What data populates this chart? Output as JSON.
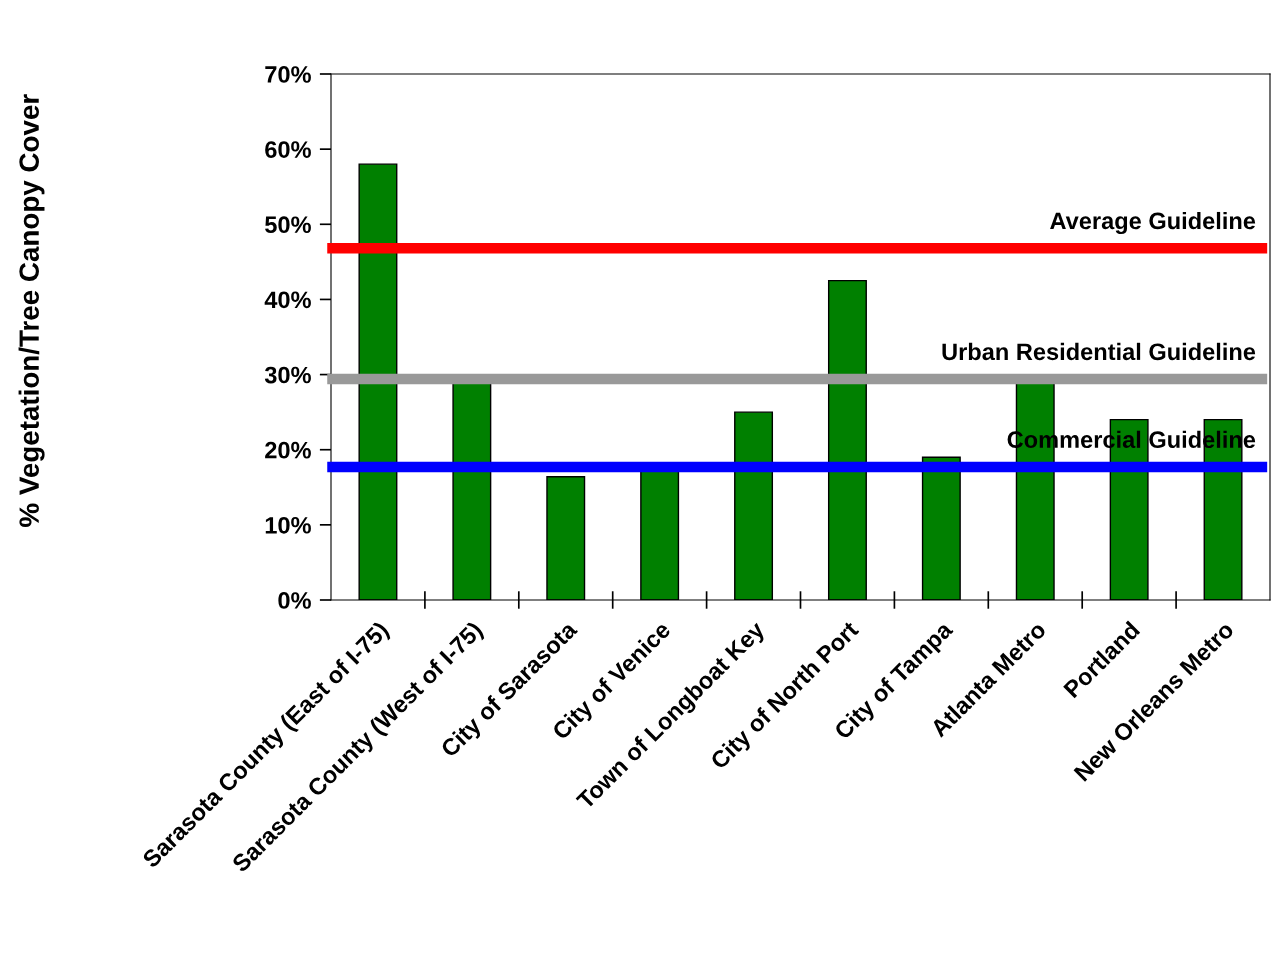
{
  "chart_data": {
    "type": "bar",
    "ylabel": "% Vegetation/Tree Canopy Cover",
    "categories": [
      "Sarasota County (East of I-75)",
      "Sarasota County (West of I-75)",
      "City of Sarasota",
      "City of Venice",
      "Town of Longboat Key",
      "City of North Port",
      "City of Tampa",
      "Atlanta Metro",
      "Portland",
      "New Orleans Metro"
    ],
    "values": [
      58,
      29,
      16.4,
      17.5,
      25,
      42.5,
      19,
      29,
      24,
      24
    ],
    "color": "#008000",
    "ylim": [
      0,
      70
    ],
    "yticks": [
      {
        "value": 0,
        "label": "0%"
      },
      {
        "value": 10,
        "label": "10%"
      },
      {
        "value": 20,
        "label": "20%"
      },
      {
        "value": 30,
        "label": "30%"
      },
      {
        "value": 40,
        "label": "40%"
      },
      {
        "value": 50,
        "label": "50%"
      },
      {
        "value": 60,
        "label": "60%"
      },
      {
        "value": 70,
        "label": "70%"
      }
    ],
    "ref_lines": [
      {
        "axis": "y",
        "value": 46.8,
        "label": "Average Guideline",
        "color": "#ff0000"
      },
      {
        "axis": "y",
        "value": 29.4,
        "label": "Urban Residential Guideline",
        "color": "#999999"
      },
      {
        "axis": "y",
        "value": 17.7,
        "label": "Commercial Guideline",
        "color": "#0000ff"
      }
    ],
    "grid": false,
    "legend": false
  }
}
